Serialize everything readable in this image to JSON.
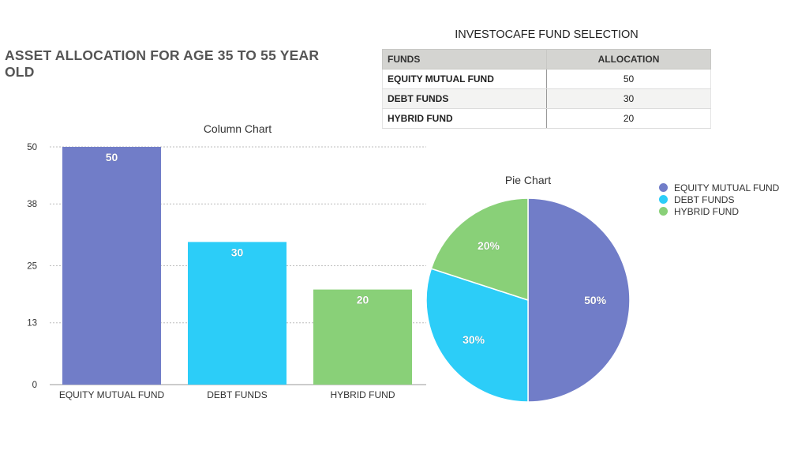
{
  "page_title": "ASSET  ALLOCATION FOR AGE 35 TO 55 YEAR OLD",
  "table": {
    "title": "INVESTOCAFE FUND SELECTION",
    "headers": [
      "FUNDS",
      "ALLOCATION"
    ],
    "rows": [
      {
        "fund": "EQUITY MUTUAL FUND",
        "allocation": "50"
      },
      {
        "fund": "DEBT FUNDS",
        "allocation": "30"
      },
      {
        "fund": "HYBRID FUND",
        "allocation": "20"
      }
    ]
  },
  "colors": {
    "equity": "#717dc8",
    "debt": "#2ccdf8",
    "hybrid": "#89d078"
  },
  "chart_data": [
    {
      "type": "bar",
      "title": "Column Chart",
      "categories": [
        "EQUITY MUTUAL FUND",
        "DEBT FUNDS",
        "HYBRID FUND"
      ],
      "values": [
        50,
        30,
        20
      ],
      "data_labels": [
        "50",
        "30",
        "20"
      ],
      "yticks": [
        "0",
        "13",
        "25",
        "38",
        "50"
      ],
      "ylim": [
        0,
        50
      ],
      "grid": true
    },
    {
      "type": "pie",
      "title": "Pie Chart",
      "labels": [
        "EQUITY MUTUAL FUND",
        "DEBT FUNDS",
        "HYBRID FUND"
      ],
      "values": [
        50,
        30,
        20
      ],
      "data_labels": [
        "50%",
        "30%",
        "20%"
      ],
      "legend_position": "top-right"
    }
  ]
}
